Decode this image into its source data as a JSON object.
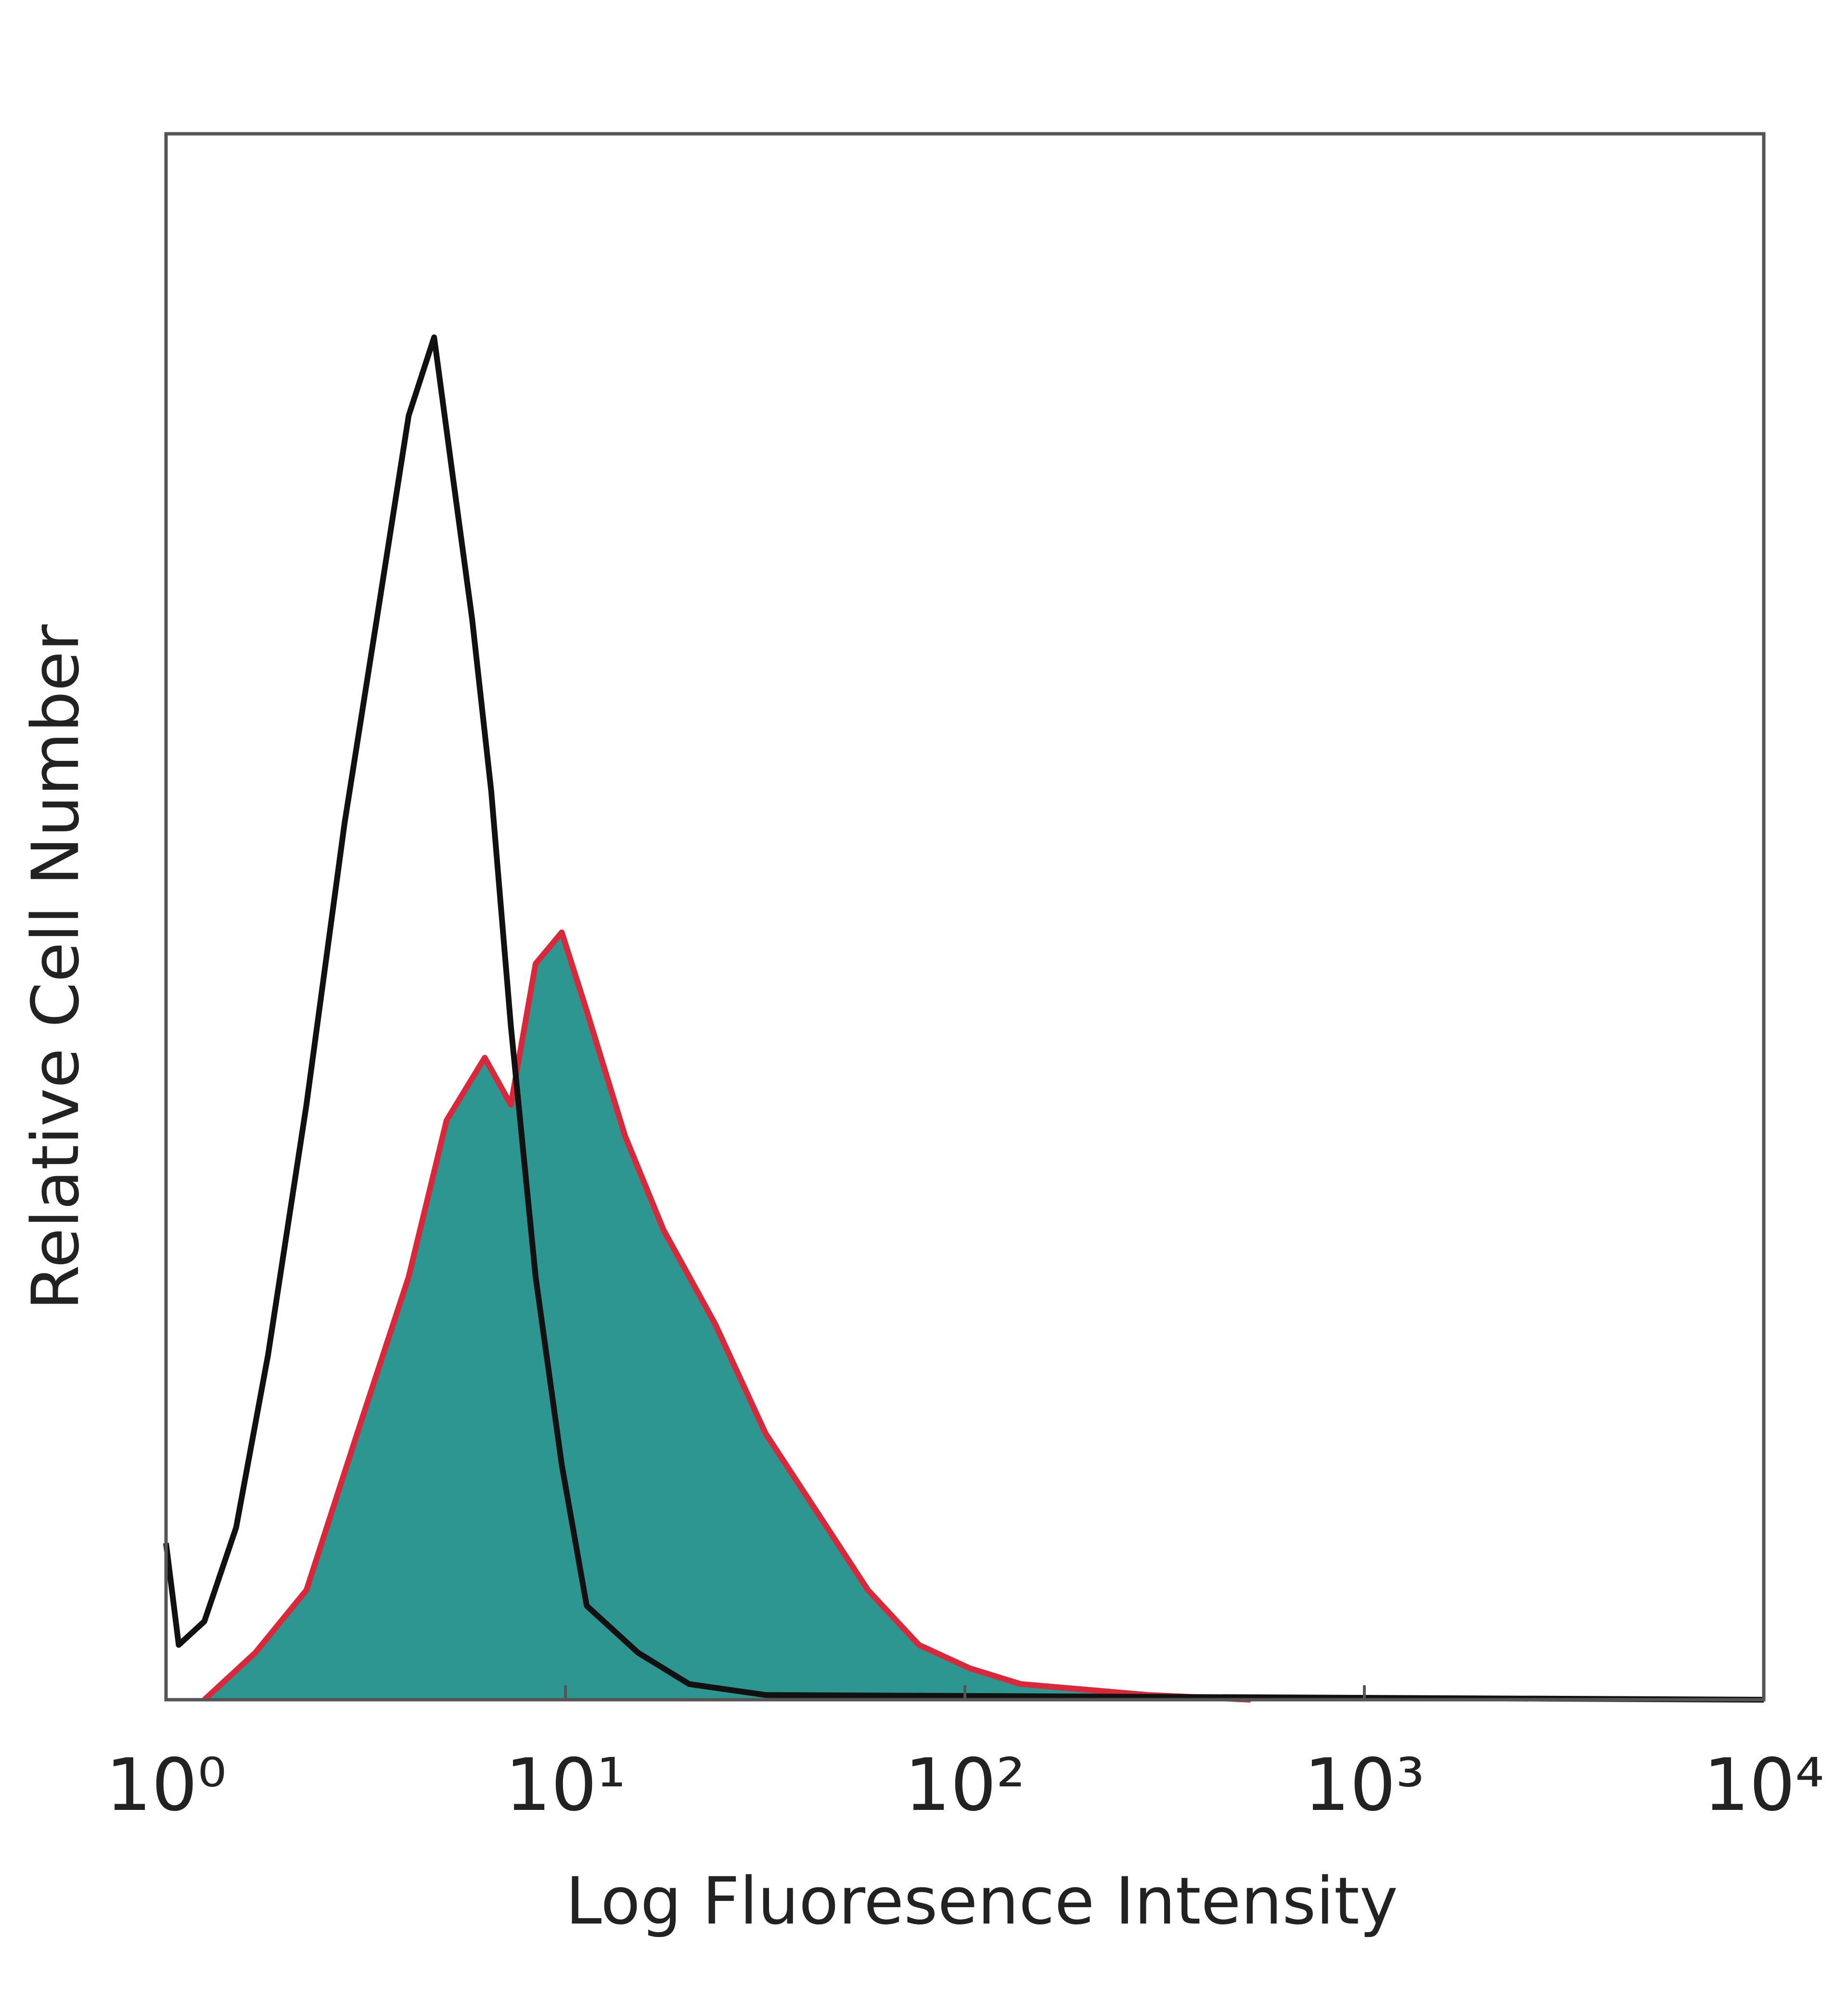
{
  "chart_data": {
    "type": "histogram-overlay",
    "x_label": "Log Fluoresence Intensity",
    "y_label": "Relative Cell Number",
    "xscale": "log",
    "xlim": [
      1,
      10000
    ],
    "ylim": [
      0,
      100
    ],
    "xticks": [
      {
        "value": 1,
        "label": "10⁰"
      },
      {
        "value": 10,
        "label": "10¹"
      },
      {
        "value": 100,
        "label": "10²"
      },
      {
        "value": 1000,
        "label": "10³"
      },
      {
        "value": 10000,
        "label": "10⁴"
      }
    ],
    "series": [
      {
        "style": "filled",
        "color": "#d8283a",
        "fill": "#2e9691",
        "x": [
          1.247,
          1.673,
          2.247,
          3.01,
          4.05,
          5.04,
          6.28,
          7.3,
          8.42,
          9.79,
          11.3,
          14.1,
          17.6,
          23.7,
          31.7,
          42.6,
          57.2,
          76.7,
          103,
          138,
          288,
          519
        ],
        "values": [
          0,
          3,
          7,
          17,
          27,
          37,
          41,
          38,
          47,
          49,
          44,
          36,
          30,
          24,
          17,
          12,
          7,
          3.5,
          2,
          1,
          0.3,
          0
        ]
      },
      {
        "style": "outline",
        "color": "#111111",
        "x": [
          1,
          1.076,
          1.247,
          1.498,
          1.8,
          2.247,
          2.8,
          3.37,
          4.05,
          4.69,
          5.23,
          5.84,
          6.52,
          7.3,
          8.42,
          9.79,
          11.3,
          15.2,
          20.4,
          31.7,
          10000
        ],
        "values": [
          10,
          3.5,
          5,
          11,
          22,
          38,
          56,
          69,
          82,
          87,
          78,
          69,
          58,
          43,
          27,
          15,
          6,
          3,
          1,
          0.3,
          0
        ]
      }
    ]
  }
}
